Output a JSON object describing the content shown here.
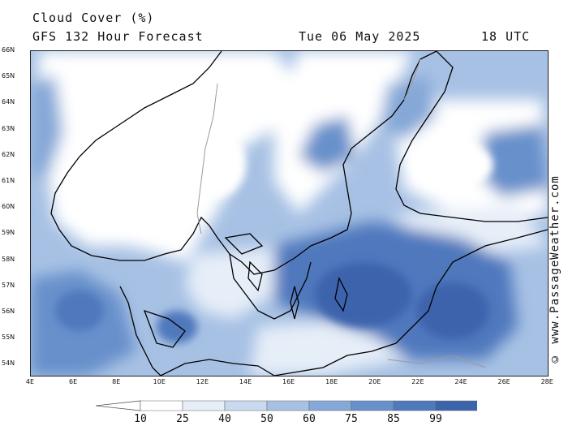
{
  "header": {
    "title": "Cloud Cover (%)",
    "subtitle": "GFS 132 Hour Forecast",
    "valid_date": "Tue 06 May 2025",
    "valid_time": "18 UTC"
  },
  "map": {
    "lon_range": [
      4,
      28
    ],
    "lat_range": [
      53.7,
      66
    ],
    "lat_labels": [
      "66N",
      "65N",
      "64N",
      "63N",
      "62N",
      "61N",
      "60N",
      "59N",
      "58N",
      "57N",
      "56N",
      "55N",
      "54N"
    ],
    "lon_labels": [
      "4E",
      "6E",
      "8E",
      "10E",
      "12E",
      "14E",
      "16E",
      "18E",
      "20E",
      "22E",
      "24E",
      "26E",
      "28E"
    ],
    "coastline_color": "#000000",
    "border_color": "#9a9a9a"
  },
  "legend": {
    "values": [
      "10",
      "25",
      "40",
      "50",
      "60",
      "75",
      "85",
      "99"
    ],
    "colors": [
      "#ffffff",
      "#e6eef8",
      "#c9d9ef",
      "#a7c1e4",
      "#85a8d8",
      "#6890cb",
      "#4f78bd",
      "#3c64ad"
    ]
  },
  "watermark": "© www.PassageWeather.com"
}
